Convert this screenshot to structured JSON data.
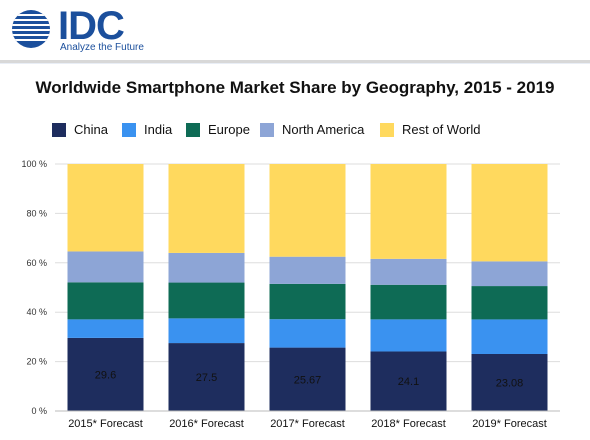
{
  "logo": {
    "name": "IDC",
    "tagline": "Analyze the Future"
  },
  "chart_data": {
    "type": "bar",
    "stacked": true,
    "title": "Worldwide Smartphone Market Share by Geography, 2015 - 2019",
    "xlabel": "",
    "ylabel": "",
    "ylim": [
      0,
      100
    ],
    "yticks": [
      "0 %",
      "20 %",
      "40 %",
      "60 %",
      "80 %",
      "100 %"
    ],
    "categories": [
      "2015* Forecast",
      "2016* Forecast",
      "2017* Forecast",
      "2018* Forecast",
      "2019* Forecast"
    ],
    "legend_position": "top",
    "series": [
      {
        "name": "China",
        "color": "#1e2d5e",
        "values": [
          29.6,
          27.5,
          25.67,
          24.1,
          23.08
        ]
      },
      {
        "name": "India",
        "color": "#3a92f0",
        "values": [
          7.5,
          10,
          11.5,
          13,
          14
        ]
      },
      {
        "name": "Europe",
        "color": "#0e6b55",
        "values": [
          15,
          14.5,
          14.3,
          14,
          13.5
        ]
      },
      {
        "name": "North America",
        "color": "#8da5d6",
        "values": [
          12.5,
          12,
          11,
          10.5,
          10
        ]
      },
      {
        "name": "Rest of World",
        "color": "#ffd95e",
        "values": [
          35.4,
          36,
          37.53,
          38.4,
          39.42
        ]
      }
    ],
    "data_labels": {
      "series": "China",
      "values": [
        "29.6",
        "27.5",
        "25.67",
        "24.1",
        "23.08"
      ]
    }
  }
}
